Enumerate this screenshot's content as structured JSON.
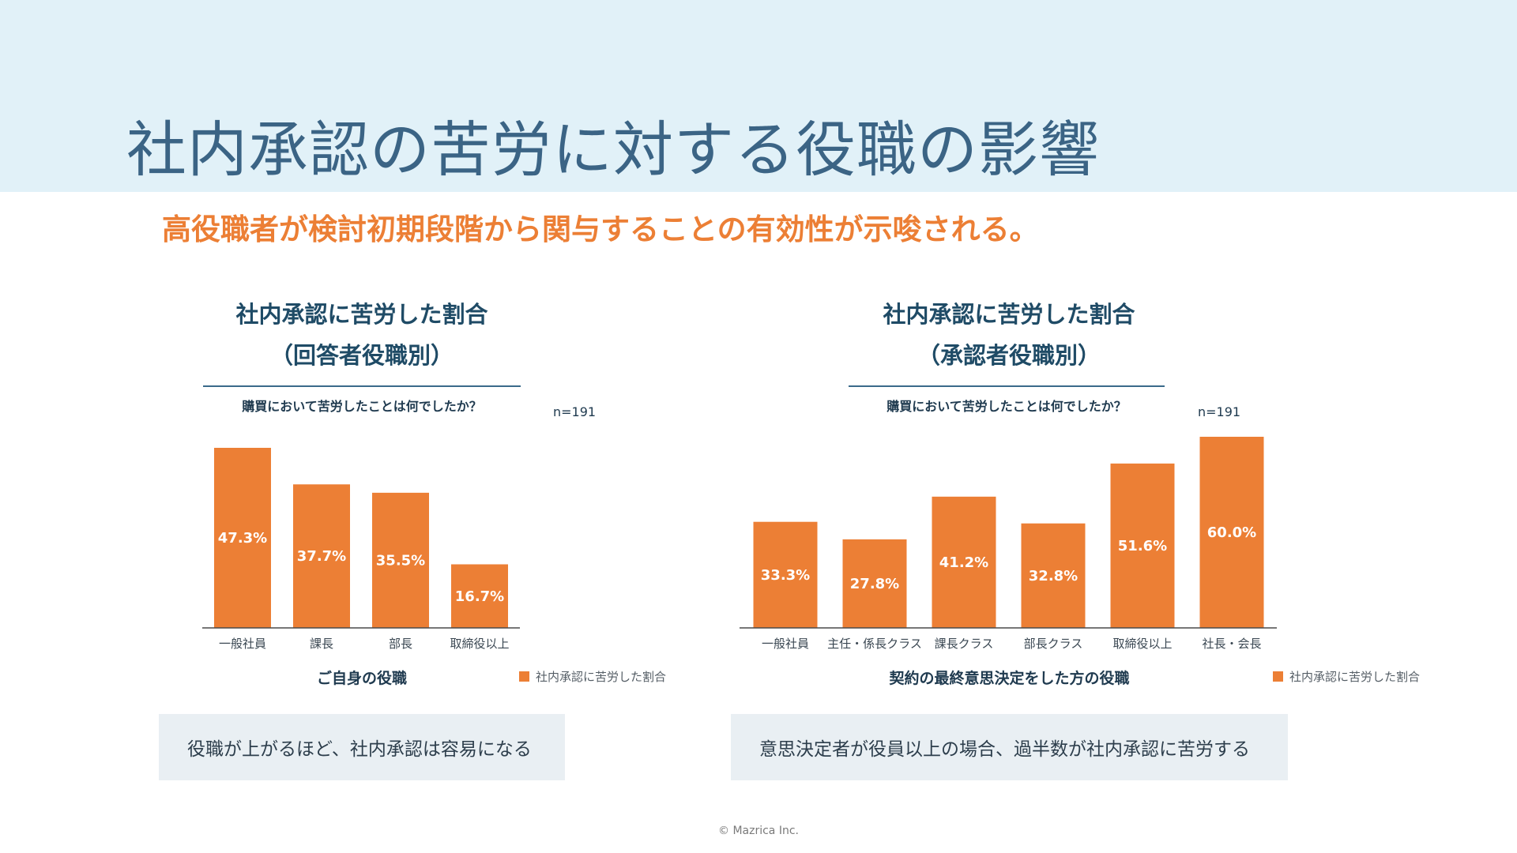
{
  "page": {
    "title": "社内承認の苦労に対する役職の影響",
    "subtitle": "高役職者が検討初期段階から関与することの有効性が示唆される。",
    "copyright": "© Mazrica Inc."
  },
  "colors": {
    "bar": "#ec7f35",
    "header_band": "#e1f1f8",
    "title": "#3b6485",
    "accent": "#ec7f35"
  },
  "left": {
    "title_line1": "社内承認に苦労した割合",
    "title_line2": "（回答者役職別）",
    "question": "購買において苦労したことは何でしたか？",
    "n_label": "n=191",
    "xaxis_label": "ご自身の役職",
    "legend_label": "社内承認に苦労した割合",
    "callout": "役職が上がるほど、社内承認は容易になる"
  },
  "right": {
    "title_line1": "社内承認に苦労した割合",
    "title_line2": "（承認者役職別）",
    "question": "購買において苦労したことは何でしたか？",
    "n_label": "n=191",
    "xaxis_label": "契約の最終意思決定をした方の役職",
    "legend_label": "社内承認に苦労した割合",
    "callout": "意思決定者が役員以上の場合、過半数が社内承認に苦労する"
  },
  "chart_data": [
    {
      "type": "bar",
      "title": "社内承認に苦労した割合（回答者役職別）",
      "xlabel": "ご自身の役職",
      "ylabel": "",
      "categories": [
        "一般社員",
        "課長",
        "部長",
        "取締役以上"
      ],
      "series": [
        {
          "name": "社内承認に苦労した割合",
          "values": [
            47.3,
            37.7,
            35.5,
            16.7
          ]
        }
      ],
      "value_labels": [
        "47.3%",
        "37.7%",
        "35.5%",
        "16.7%"
      ],
      "ylim": [
        0,
        47.3
      ],
      "legend": "bottom-right",
      "grid": false
    },
    {
      "type": "bar",
      "title": "社内承認に苦労した割合（承認者役職別）",
      "xlabel": "契約の最終意思決定をした方の役職",
      "ylabel": "",
      "categories": [
        "一般社員",
        "主任・係長クラス",
        "課長クラス",
        "部長クラス",
        "取締役以上",
        "社長・会長"
      ],
      "series": [
        {
          "name": "社内承認に苦労した割合",
          "values": [
            33.3,
            27.8,
            41.2,
            32.8,
            51.6,
            60.0
          ]
        }
      ],
      "value_labels": [
        "33.3%",
        "27.8%",
        "41.2%",
        "32.8%",
        "51.6%",
        "60.0%"
      ],
      "ylim": [
        0,
        60.0
      ],
      "legend": "bottom-right",
      "grid": false
    }
  ]
}
